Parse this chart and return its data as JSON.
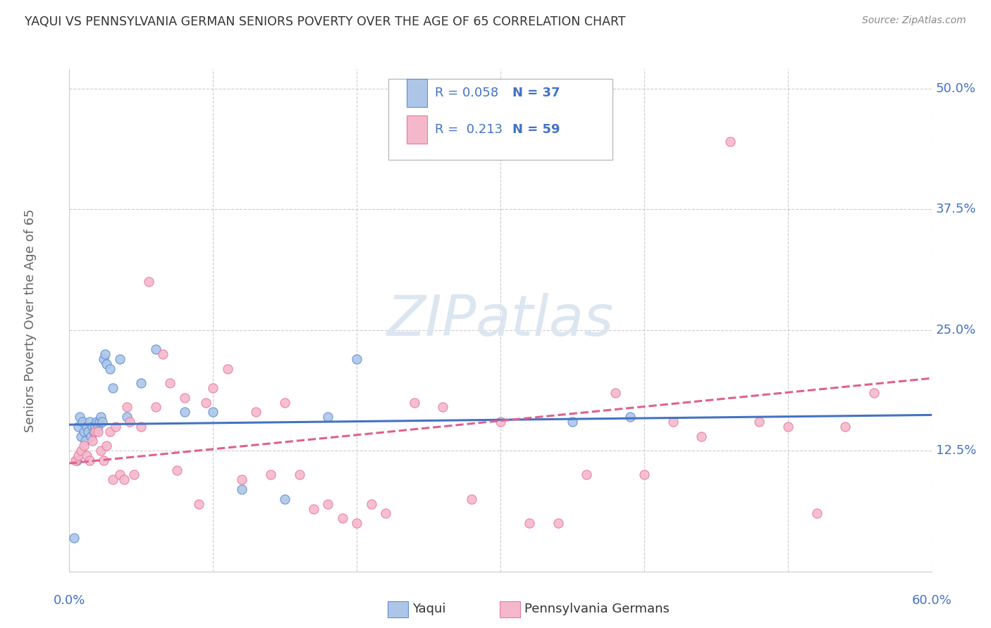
{
  "title": "YAQUI VS PENNSYLVANIA GERMAN SENIORS POVERTY OVER THE AGE OF 65 CORRELATION CHART",
  "source": "Source: ZipAtlas.com",
  "ylabel": "Seniors Poverty Over the Age of 65",
  "xlim": [
    0.0,
    0.6
  ],
  "ylim": [
    -0.02,
    0.54
  ],
  "plot_ylim": [
    0.0,
    0.52
  ],
  "yticks": [
    0.0,
    0.125,
    0.25,
    0.375,
    0.5
  ],
  "ytick_labels": [
    "",
    "12.5%",
    "25.0%",
    "37.5%",
    "50.0%"
  ],
  "xticks": [
    0.0,
    0.1,
    0.2,
    0.3,
    0.4,
    0.5,
    0.6
  ],
  "xtick_labels": [
    "0.0%",
    "",
    "",
    "",
    "",
    "",
    "60.0%"
  ],
  "legend_text_r1": "R = 0.058",
  "legend_text_n1": "N = 37",
  "legend_text_r2": "R =  0.213",
  "legend_text_n2": "N = 59",
  "color_yaqui": "#adc6e8",
  "color_pagerman": "#f5b8cb",
  "edge_color_yaqui": "#5b8fd4",
  "edge_color_pagerman": "#e87aa0",
  "line_color_yaqui": "#4472c4",
  "line_color_pagerman": "#e06090",
  "text_color_blue": "#4472c4",
  "text_color_dark": "#333333",
  "background_color": "#ffffff",
  "grid_color": "#cccccc",
  "axis_label_color": "#666666",
  "watermark_color": "#dce6f0",
  "source_color": "#888888",
  "yaqui_x": [
    0.003,
    0.005,
    0.006,
    0.007,
    0.008,
    0.009,
    0.01,
    0.011,
    0.012,
    0.013,
    0.014,
    0.015,
    0.016,
    0.017,
    0.018,
    0.019,
    0.02,
    0.021,
    0.022,
    0.023,
    0.024,
    0.025,
    0.026,
    0.028,
    0.03,
    0.035,
    0.04,
    0.05,
    0.06,
    0.08,
    0.1,
    0.12,
    0.15,
    0.18,
    0.2,
    0.35,
    0.39
  ],
  "yaqui_y": [
    0.035,
    0.115,
    0.15,
    0.16,
    0.14,
    0.155,
    0.145,
    0.135,
    0.15,
    0.145,
    0.155,
    0.14,
    0.15,
    0.145,
    0.15,
    0.155,
    0.15,
    0.155,
    0.16,
    0.155,
    0.22,
    0.225,
    0.215,
    0.21,
    0.19,
    0.22,
    0.16,
    0.195,
    0.23,
    0.165,
    0.165,
    0.085,
    0.075,
    0.16,
    0.22,
    0.155,
    0.16
  ],
  "pagerman_x": [
    0.004,
    0.006,
    0.008,
    0.01,
    0.012,
    0.014,
    0.016,
    0.018,
    0.02,
    0.022,
    0.024,
    0.026,
    0.028,
    0.03,
    0.032,
    0.035,
    0.038,
    0.04,
    0.042,
    0.045,
    0.05,
    0.055,
    0.06,
    0.065,
    0.07,
    0.075,
    0.08,
    0.09,
    0.095,
    0.1,
    0.11,
    0.12,
    0.13,
    0.14,
    0.15,
    0.16,
    0.17,
    0.18,
    0.19,
    0.2,
    0.21,
    0.22,
    0.24,
    0.26,
    0.28,
    0.3,
    0.32,
    0.34,
    0.36,
    0.38,
    0.4,
    0.42,
    0.44,
    0.46,
    0.48,
    0.5,
    0.52,
    0.54,
    0.56
  ],
  "pagerman_y": [
    0.115,
    0.12,
    0.125,
    0.13,
    0.12,
    0.115,
    0.135,
    0.145,
    0.145,
    0.125,
    0.115,
    0.13,
    0.145,
    0.095,
    0.15,
    0.1,
    0.095,
    0.17,
    0.155,
    0.1,
    0.15,
    0.3,
    0.17,
    0.225,
    0.195,
    0.105,
    0.18,
    0.07,
    0.175,
    0.19,
    0.21,
    0.095,
    0.165,
    0.1,
    0.175,
    0.1,
    0.065,
    0.07,
    0.055,
    0.05,
    0.07,
    0.06,
    0.175,
    0.17,
    0.075,
    0.155,
    0.05,
    0.05,
    0.1,
    0.185,
    0.1,
    0.155,
    0.14,
    0.445,
    0.155,
    0.15,
    0.06,
    0.15,
    0.185
  ],
  "yaqui_line_x": [
    0.0,
    0.6
  ],
  "yaqui_line_y": [
    0.152,
    0.162
  ],
  "pagerman_line_x": [
    0.0,
    0.6
  ],
  "pagerman_line_y": [
    0.112,
    0.2
  ]
}
